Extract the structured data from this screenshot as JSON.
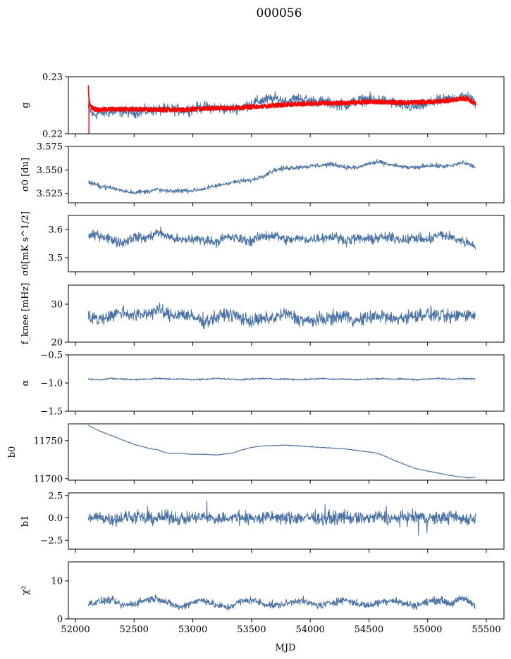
{
  "title": "000056",
  "xlabel": "MJD",
  "colors": {
    "series": "#4a73a3",
    "fit": "#ff0000",
    "axes": "#000000"
  },
  "chart_data": {
    "type": "line",
    "shared_x": {
      "xlim": [
        51940,
        55650
      ],
      "ticks": [
        52000,
        52500,
        53000,
        53500,
        54000,
        54500,
        55000,
        55500
      ],
      "tick_labels": [
        "52000",
        "52500",
        "53000",
        "53500",
        "54000",
        "54500",
        "55000",
        "55500"
      ],
      "data_range": [
        52110,
        55410
      ]
    },
    "panels": [
      {
        "id": "g",
        "ylabel": "g",
        "ylim": [
          0.22,
          0.23
        ],
        "yticks": [
          0.22,
          0.23
        ],
        "ytick_labels": [
          "0.22",
          "0.23"
        ],
        "grid": false,
        "series": [
          {
            "color": "#4a73a3",
            "x": [
              52110,
              52150,
              52200,
              52300,
              52400,
              52500,
              52600,
              52700,
              52800,
              52900,
              53000,
              53100,
              53200,
              53300,
              53400,
              53500,
              53600,
              53700,
              53800,
              53900,
              54000,
              54100,
              54200,
              54300,
              54400,
              54500,
              54600,
              54700,
              54800,
              54900,
              55000,
              55100,
              55200,
              55300,
              55350,
              55410
            ],
            "y": [
              0.2245,
              0.2233,
              0.2236,
              0.2238,
              0.2239,
              0.2238,
              0.224,
              0.2242,
              0.2243,
              0.2241,
              0.2244,
              0.2247,
              0.2246,
              0.2243,
              0.2246,
              0.2253,
              0.2259,
              0.2262,
              0.2257,
              0.2262,
              0.2258,
              0.2256,
              0.2253,
              0.225,
              0.2258,
              0.2261,
              0.2259,
              0.2255,
              0.2248,
              0.2247,
              0.2252,
              0.2258,
              0.2262,
              0.2266,
              0.2265,
              0.2252
            ]
          },
          {
            "color": "#ff0000",
            "x": [
              52110,
              52115,
              52130,
              52150,
              52200,
              52300,
              52400,
              52500,
              52600,
              52700,
              52800,
              52900,
              53000,
              53100,
              53200,
              53300,
              53400,
              53500,
              53600,
              53700,
              53800,
              53900,
              54000,
              54100,
              54200,
              54300,
              54400,
              54500,
              54600,
              54700,
              54800,
              54900,
              55000,
              55100,
              55200,
              55300,
              55350,
              55410
            ],
            "y": [
              0.2285,
              0.226,
              0.2248,
              0.2244,
              0.2242,
              0.2243,
              0.2243,
              0.2243,
              0.2243,
              0.2242,
              0.2242,
              0.2242,
              0.2243,
              0.2244,
              0.2245,
              0.2245,
              0.2246,
              0.2247,
              0.2248,
              0.225,
              0.2251,
              0.2252,
              0.2253,
              0.2254,
              0.2254,
              0.2254,
              0.2255,
              0.2256,
              0.2256,
              0.2255,
              0.2255,
              0.2255,
              0.2256,
              0.2257,
              0.2259,
              0.2262,
              0.226,
              0.2252
            ]
          }
        ]
      },
      {
        "id": "sigma0-du",
        "ylabel": "σ0 [du]",
        "ylim": [
          3.515,
          3.575
        ],
        "yticks": [
          3.525,
          3.55,
          3.575
        ],
        "ytick_labels": [
          "3.525",
          "3.550",
          "3.575"
        ],
        "grid": false,
        "series": [
          {
            "color": "#4a73a3",
            "x": [
              52110,
              52200,
              52300,
              52400,
              52500,
              52600,
              52700,
              52800,
              52900,
              53000,
              53100,
              53200,
              53300,
              53400,
              53500,
              53600,
              53700,
              53800,
              53900,
              54000,
              54100,
              54200,
              54300,
              54400,
              54500,
              54600,
              54700,
              54800,
              54900,
              55000,
              55100,
              55200,
              55300,
              55410
            ],
            "y": [
              3.537,
              3.533,
              3.531,
              3.528,
              3.526,
              3.527,
              3.529,
              3.527,
              3.528,
              3.528,
              3.53,
              3.533,
              3.536,
              3.538,
              3.539,
              3.544,
              3.55,
              3.552,
              3.553,
              3.554,
              3.555,
              3.556,
              3.553,
              3.552,
              3.557,
              3.558,
              3.555,
              3.553,
              3.552,
              3.555,
              3.554,
              3.554,
              3.558,
              3.553
            ]
          }
        ]
      },
      {
        "id": "sigma0-mk",
        "ylabel": "σ0[mK s^1/2]",
        "ylim": [
          3.45,
          3.65
        ],
        "yticks": [
          3.5,
          3.6
        ],
        "ytick_labels": [
          "3.5",
          "3.6"
        ],
        "grid": false,
        "series": [
          {
            "color": "#4a73a3",
            "x": [
              52110,
              52200,
              52300,
              52400,
              52500,
              52600,
              52700,
              52800,
              52900,
              53000,
              53100,
              53200,
              53300,
              53400,
              53500,
              53600,
              53700,
              53800,
              53900,
              54000,
              54100,
              54200,
              54300,
              54400,
              54500,
              54600,
              54700,
              54800,
              54900,
              55000,
              55100,
              55200,
              55300,
              55410
            ],
            "y": [
              3.575,
              3.582,
              3.566,
              3.553,
              3.574,
              3.568,
              3.59,
              3.574,
              3.561,
              3.567,
              3.563,
              3.556,
              3.574,
              3.566,
              3.56,
              3.577,
              3.58,
              3.562,
              3.568,
              3.565,
              3.572,
              3.575,
              3.562,
              3.568,
              3.565,
              3.572,
              3.57,
              3.565,
              3.57,
              3.562,
              3.582,
              3.572,
              3.559,
              3.545
            ]
          }
        ]
      },
      {
        "id": "f-knee",
        "ylabel": "f_knee [mHz]",
        "ylim": [
          20,
          35
        ],
        "yticks": [
          20,
          30
        ],
        "ytick_labels": [
          "20",
          "30"
        ],
        "grid": false,
        "series": [
          {
            "color": "#4a73a3",
            "x": [
              52110,
              52200,
              52300,
              52400,
              52500,
              52600,
              52700,
              52800,
              52900,
              53000,
              53100,
              53200,
              53300,
              53400,
              53500,
              53600,
              53700,
              53800,
              53900,
              54000,
              54100,
              54200,
              54300,
              54400,
              54500,
              54600,
              54700,
              54800,
              54900,
              55000,
              55100,
              55200,
              55300,
              55410
            ],
            "y": [
              26.5,
              26.0,
              27.0,
              28.0,
              27.0,
              27.5,
              28.5,
              27.0,
              27.5,
              26.5,
              25.5,
              26.5,
              27.5,
              26.5,
              25.5,
              26.0,
              26.5,
              27.5,
              26.0,
              25.5,
              26.0,
              26.5,
              27.0,
              25.5,
              26.5,
              27.0,
              26.0,
              26.5,
              27.0,
              27.5,
              27.0,
              26.5,
              27.5,
              27.0
            ]
          }
        ]
      },
      {
        "id": "alpha",
        "ylabel": "α",
        "ylim": [
          -1.5,
          -0.5
        ],
        "yticks": [
          -1.5,
          -1.0,
          -0.5
        ],
        "ytick_labels": [
          "−1.5",
          "−1.0",
          "−0.5"
        ],
        "grid": false,
        "series": [
          {
            "color": "#4a73a3",
            "x": [
              52110,
              52200,
              52300,
              52400,
              52500,
              52600,
              52700,
              52800,
              52900,
              53000,
              53100,
              53200,
              53300,
              53400,
              53500,
              53600,
              53700,
              53800,
              53900,
              54000,
              54100,
              54200,
              54300,
              54400,
              54500,
              54600,
              54700,
              54800,
              54900,
              55000,
              55100,
              55200,
              55300,
              55410
            ],
            "y": [
              -0.93,
              -0.94,
              -0.92,
              -0.93,
              -0.94,
              -0.93,
              -0.92,
              -0.93,
              -0.93,
              -0.94,
              -0.93,
              -0.92,
              -0.93,
              -0.94,
              -0.93,
              -0.92,
              -0.93,
              -0.93,
              -0.94,
              -0.93,
              -0.92,
              -0.93,
              -0.93,
              -0.94,
              -0.93,
              -0.92,
              -0.93,
              -0.93,
              -0.94,
              -0.93,
              -0.92,
              -0.93,
              -0.92,
              -0.93
            ]
          }
        ]
      },
      {
        "id": "b0",
        "ylabel": "b0",
        "ylim": [
          11698,
          11772
        ],
        "yticks": [
          11700,
          11750
        ],
        "ytick_labels": [
          "11700",
          "11750"
        ],
        "grid": false,
        "series": [
          {
            "color": "#4a73a3",
            "x": [
              52110,
              52150,
              52200,
              52300,
              52400,
              52500,
              52600,
              52650,
              52700,
              52750,
              52800,
              52900,
              53000,
              53100,
              53200,
              53300,
              53350,
              53400,
              53500,
              53600,
              53700,
              53800,
              53900,
              54000,
              54100,
              54200,
              54300,
              54400,
              54500,
              54550,
              54600,
              54700,
              54800,
              54900,
              55000,
              55100,
              55200,
              55300,
              55350,
              55410
            ],
            "y": [
              11770,
              11767,
              11763,
              11757,
              11751,
              11745,
              11741,
              11739,
              11738,
              11735,
              11733,
              11733,
              11732,
              11732,
              11731,
              11733,
              11734,
              11737,
              11741,
              11743,
              11743.5,
              11744,
              11743,
              11742,
              11741,
              11740,
              11739,
              11737,
              11735,
              11734,
              11732,
              11725,
              11719,
              11713,
              11710,
              11707,
              11704,
              11702,
              11701,
              11702
            ]
          }
        ]
      },
      {
        "id": "b1",
        "ylabel": "b1",
        "ylim": [
          -3.5,
          2.8
        ],
        "yticks": [
          -2.5,
          0.0,
          2.5
        ],
        "ytick_labels": [
          "−2.5",
          "0.0",
          "2.5"
        ],
        "grid": false,
        "series": [
          {
            "color": "#4a73a3",
            "x": [
              52110,
              52200,
              52300,
              52400,
              52500,
              52600,
              52700,
              52800,
              52900,
              53000,
              53100,
              53200,
              53300,
              53400,
              53500,
              53600,
              53700,
              53800,
              53900,
              54000,
              54100,
              54200,
              54300,
              54400,
              54500,
              54600,
              54700,
              54800,
              54900,
              55000,
              55100,
              55200,
              55300,
              55410
            ],
            "y": [
              0.0,
              0.1,
              -0.1,
              0.0,
              0.1,
              -0.1,
              0.0,
              0.1,
              -0.1,
              0.0,
              0.1,
              -0.1,
              0.0,
              0.1,
              -0.1,
              0.0,
              0.1,
              -0.1,
              0.0,
              0.1,
              -0.1,
              0.0,
              0.1,
              -0.1,
              0.0,
              0.1,
              -0.1,
              0.0,
              0.1,
              -0.1,
              0.0,
              0.1,
              -0.1,
              0.0
            ]
          }
        ]
      },
      {
        "id": "chi2",
        "ylabel": "χ²",
        "ylim": [
          0,
          15
        ],
        "yticks": [
          0,
          10
        ],
        "ytick_labels": [
          "0",
          "10"
        ],
        "grid": false,
        "series": [
          {
            "color": "#4a73a3",
            "x": [
              52110,
              52200,
              52300,
              52400,
              52500,
              52600,
              52700,
              52800,
              52900,
              53000,
              53100,
              53200,
              53300,
              53400,
              53500,
              53600,
              53700,
              53800,
              53900,
              54000,
              54100,
              54200,
              54300,
              54400,
              54500,
              54600,
              54700,
              54800,
              54900,
              55000,
              55100,
              55200,
              55300,
              55410
            ],
            "y": [
              4.0,
              4.5,
              5.0,
              3.5,
              4.0,
              5.0,
              5.5,
              4.0,
              3.0,
              4.5,
              5.0,
              3.5,
              3.0,
              4.5,
              5.0,
              4.0,
              3.5,
              4.0,
              5.0,
              4.0,
              3.5,
              4.5,
              5.0,
              4.0,
              3.5,
              4.5,
              5.0,
              4.0,
              3.5,
              4.5,
              5.0,
              4.0,
              5.5,
              3.5
            ]
          }
        ]
      }
    ]
  }
}
